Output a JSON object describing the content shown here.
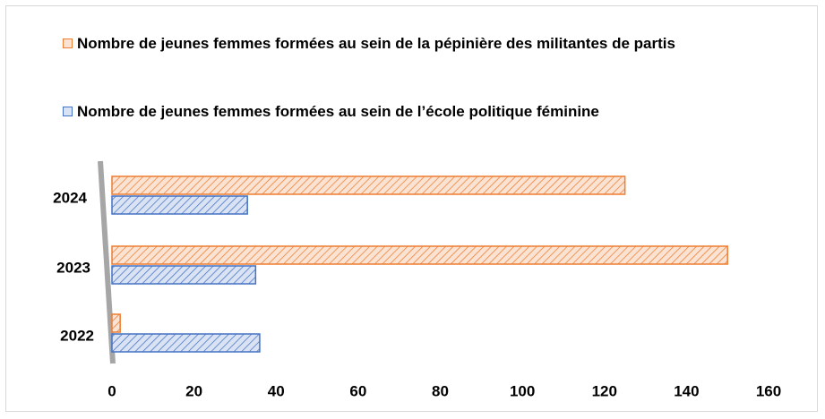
{
  "chart_data": {
    "type": "bar",
    "orientation": "horizontal",
    "categories": [
      "2024",
      "2023",
      "2022"
    ],
    "series": [
      {
        "name": "Nombre de jeunes femmes formées au sein de la pépinière des militantes de partis",
        "color": "#ed7d31",
        "values": [
          125,
          150,
          2
        ]
      },
      {
        "name": "Nombre de jeunes femmes formées au sein de l’école politique féminine",
        "color": "#4472c4",
        "values": [
          33,
          35,
          36
        ]
      }
    ],
    "xlim": [
      0,
      160
    ],
    "xticks": [
      0,
      20,
      40,
      60,
      80,
      100,
      120,
      140,
      160
    ],
    "grid": false,
    "legend": "top"
  }
}
